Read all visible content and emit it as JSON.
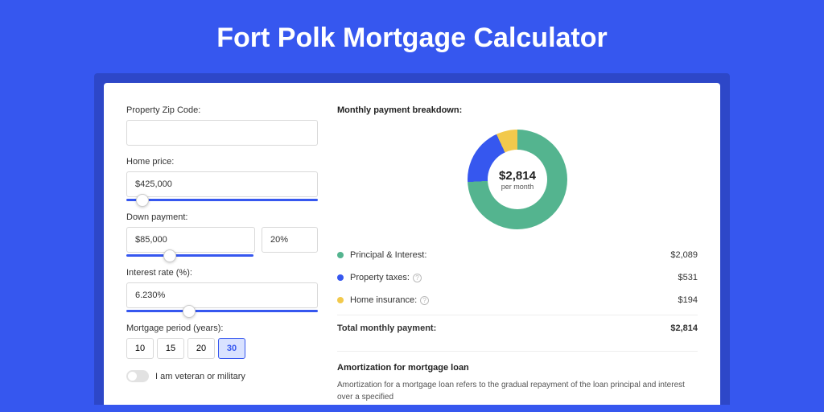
{
  "title": "Fort Polk Mortgage Calculator",
  "background_color": "#3657ef",
  "card_shadow_color": "#2d47c8",
  "form": {
    "zip": {
      "label": "Property Zip Code:",
      "value": ""
    },
    "price": {
      "label": "Home price:",
      "value": "$425,000",
      "slider_pct": 8
    },
    "down": {
      "label": "Down payment:",
      "amount": "$85,000",
      "pct": "20%",
      "slider_pct": 30
    },
    "rate": {
      "label": "Interest rate (%):",
      "value": "6.230%",
      "slider_pct": 45
    },
    "period": {
      "label": "Mortgage period (years):",
      "options": [
        "10",
        "15",
        "20",
        "30"
      ],
      "selected": "30"
    },
    "veteran": {
      "label": "I am veteran or military",
      "checked": false
    }
  },
  "breakdown": {
    "heading": "Monthly payment breakdown:",
    "total_amount": "$2,814",
    "per_month_label": "per month",
    "donut": {
      "segments": [
        {
          "label": "Principal & Interest:",
          "value": "$2,089",
          "color": "#54b48f",
          "pct": 74.2
        },
        {
          "label": "Property taxes:",
          "value": "$531",
          "color": "#3657ef",
          "pct": 18.9,
          "help": true
        },
        {
          "label": "Home insurance:",
          "value": "$194",
          "color": "#f2c94c",
          "pct": 6.9,
          "help": true
        }
      ]
    },
    "total_row": {
      "label": "Total monthly payment:",
      "value": "$2,814"
    }
  },
  "amort": {
    "heading": "Amortization for mortgage loan",
    "body": "Amortization for a mortgage loan refers to the gradual repayment of the loan principal and interest over a specified"
  }
}
